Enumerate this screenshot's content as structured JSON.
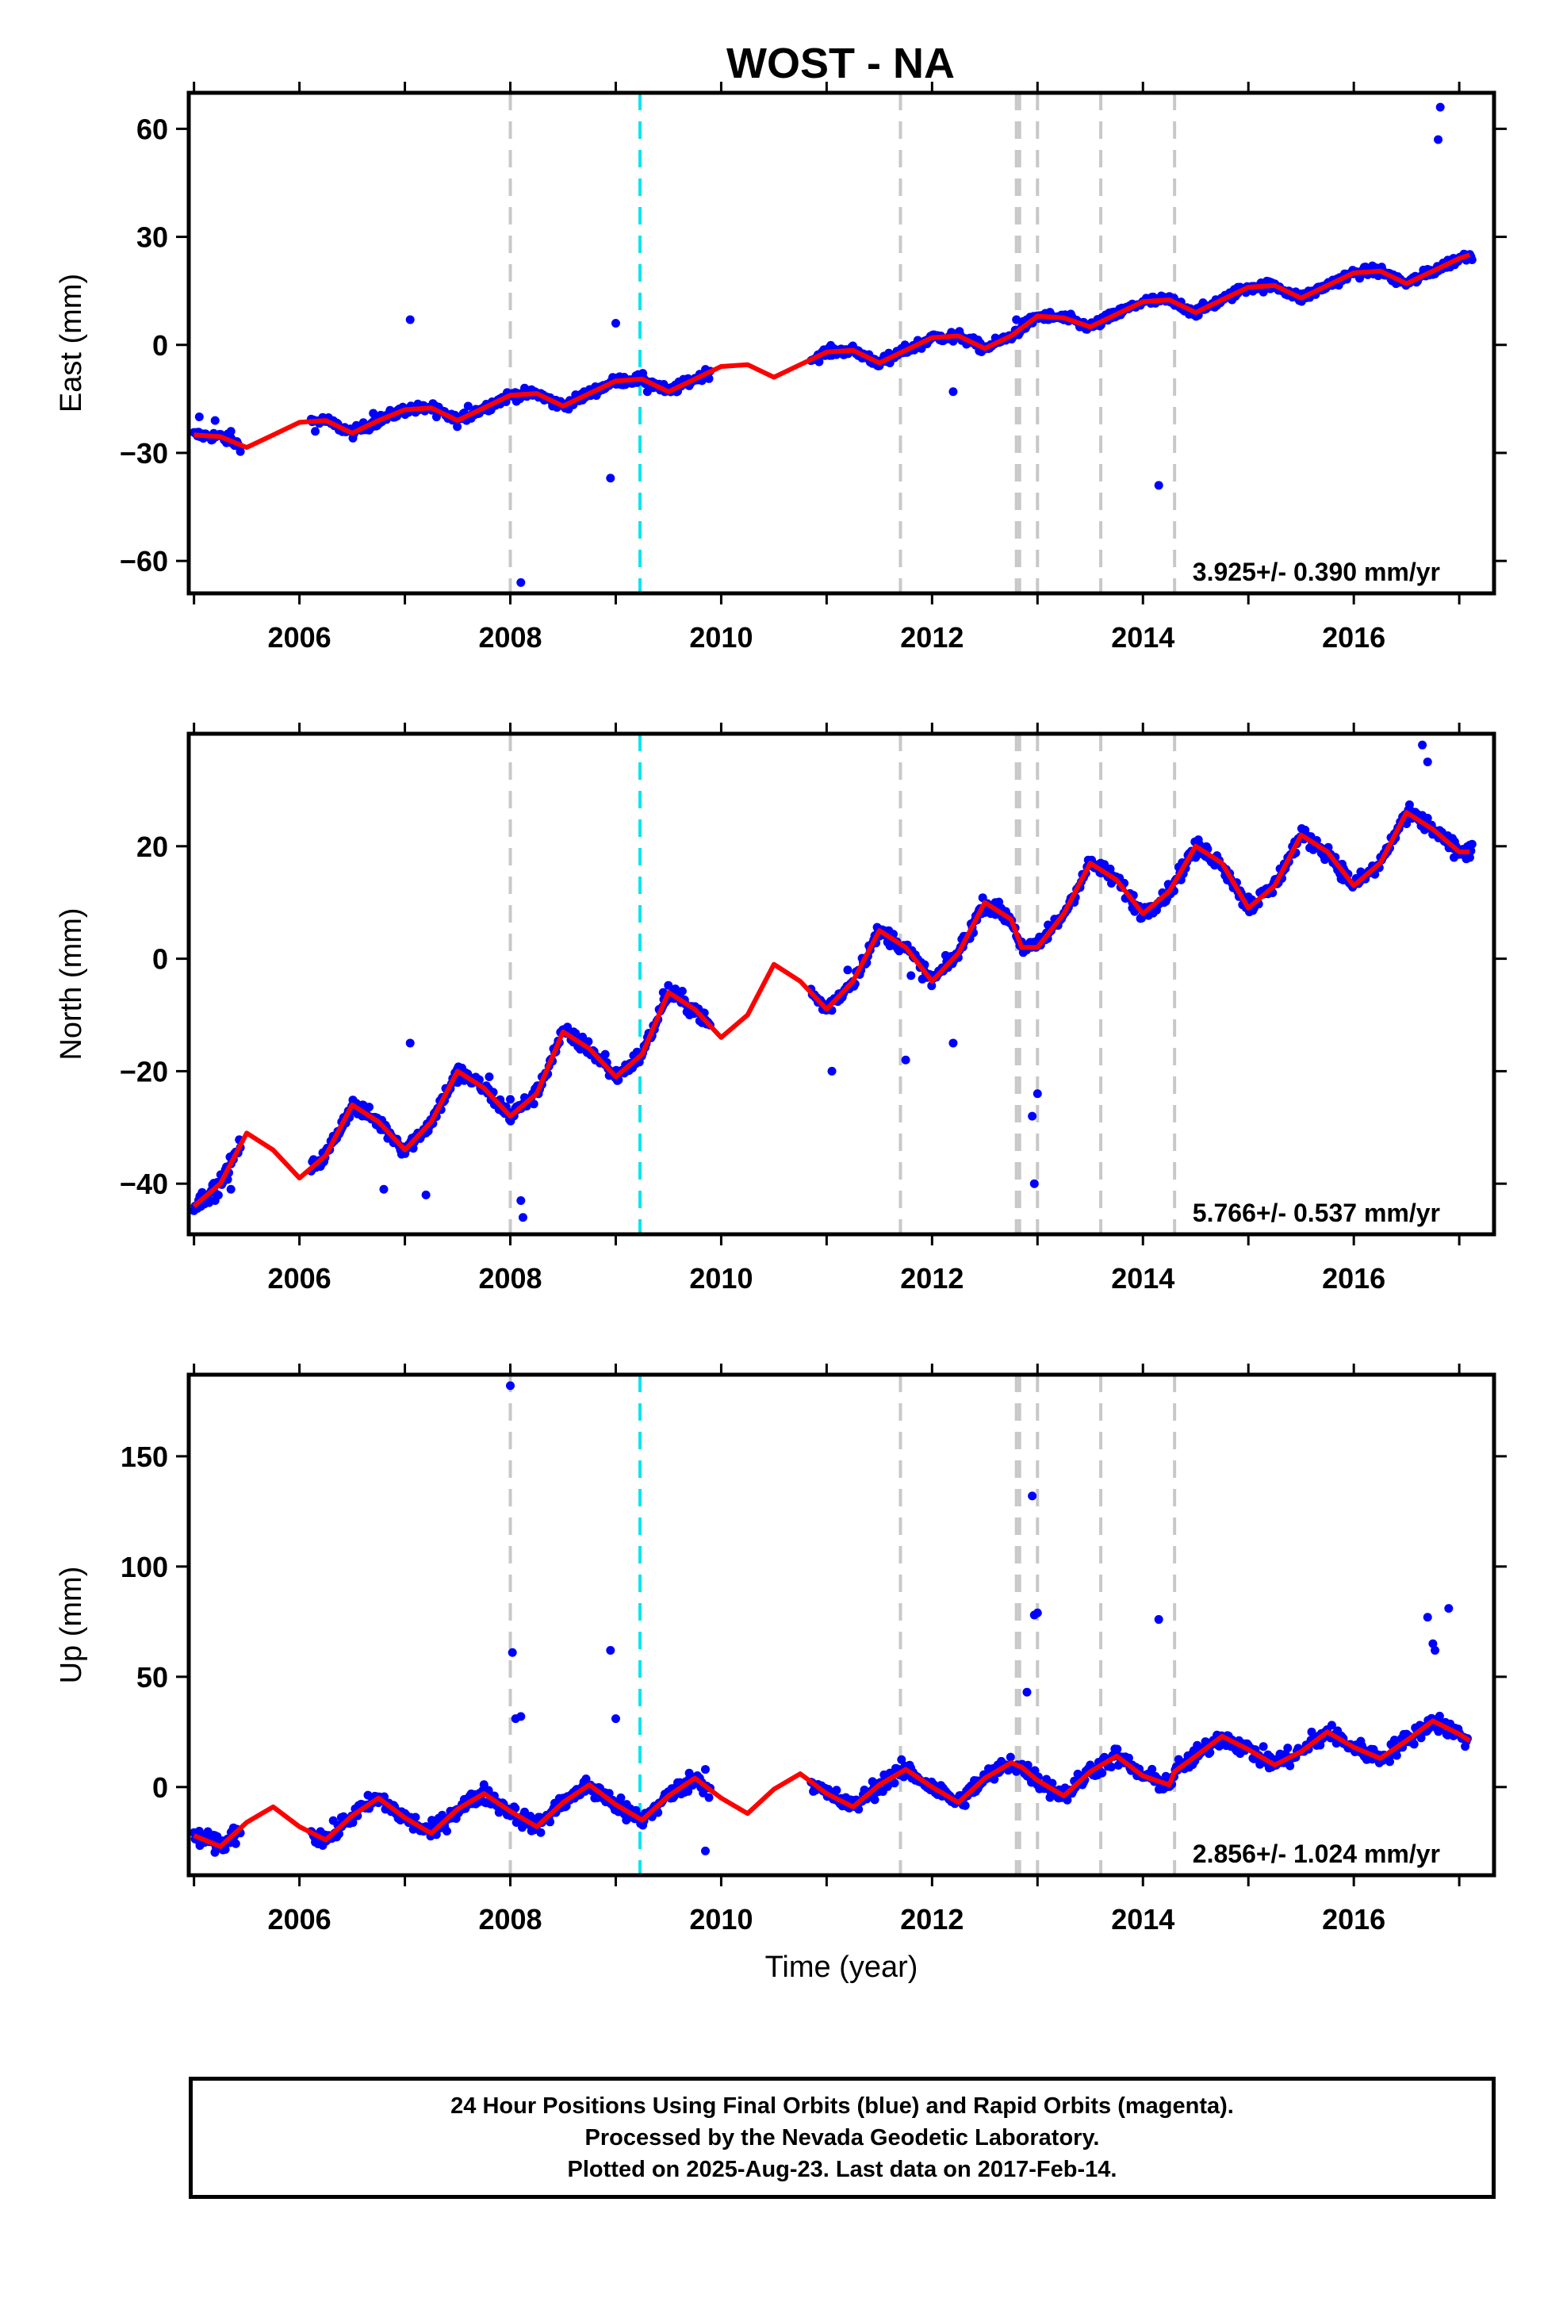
{
  "chart_data": {
    "type": "scatter",
    "title": "WOST - NA",
    "xlabel": "Time (year)",
    "x_tick_labels": [
      "2006",
      "2008",
      "2010",
      "2012",
      "2014",
      "2016"
    ],
    "xlim": [
      2004.95,
      2017.33
    ],
    "colors": {
      "observations": "#0000ff",
      "model": "#ff0000",
      "equipment_change_lines": "#c8c8c8",
      "earthquake_line": "#00e5ee"
    },
    "event_lines": {
      "gray_dashed_years": [
        2008.0,
        2011.7,
        2012.8,
        2012.83,
        2013.0,
        2013.6,
        2014.3
      ],
      "cyan_dashed_years": [
        2009.23
      ]
    },
    "data_gaps_years": [
      [
        2005.45,
        2006.1
      ],
      [
        2009.9,
        2010.85
      ]
    ],
    "panels": [
      {
        "component": "East",
        "ylabel": "East (mm)",
        "ylim": [
          -69,
          70
        ],
        "yticks": [
          -60,
          -30,
          0,
          30,
          60
        ],
        "y_tick_labels": [
          "−60",
          "−30",
          "0",
          "30",
          "60"
        ],
        "rate_label": "3.925+/- 0.390 mm/yr",
        "series": [
          {
            "name": "",
            "style": "points",
            "x": [
              2005.05,
              2005.2,
              2005.35,
              2006.15,
              2006.4,
              2006.7,
              2007.0,
              2007.3,
              2007.6,
              2007.9,
              2008.1,
              2008.4,
              2008.7,
              2009.0,
              2009.3,
              2009.6,
              2009.85,
              2011.0,
              2011.3,
              2011.6,
              2011.9,
              2012.2,
              2012.5,
              2012.8,
              2013.1,
              2013.4,
              2013.7,
              2014.0,
              2014.3,
              2014.6,
              2014.9,
              2015.2,
              2015.5,
              2015.8,
              2016.1,
              2016.4,
              2016.7,
              2016.95,
              2017.1
            ],
            "y": [
              -20,
              -21,
              -24,
              -24,
              -23,
              -19,
              -18,
              -20,
              -17,
              -15,
              -14,
              -17,
              -13,
              -10,
              -13,
              -11,
              -8,
              -2,
              -3,
              -5,
              -1,
              1,
              -1,
              7,
              7,
              5,
              9,
              12,
              11,
              10,
              16,
              17,
              13,
              18,
              20,
              17,
              21,
              24,
              25
            ]
          },
          {
            "name": "",
            "style": "outliers",
            "x": [
              2007.05,
              2008.1,
              2008.95,
              2009.0,
              2012.2,
              2014.15,
              2016.8,
              2016.82
            ],
            "y": [
              7,
              -66,
              -37,
              6,
              -13,
              -39,
              57,
              66
            ]
          },
          {
            "name": "",
            "style": "model",
            "x": [
              2005.0,
              2005.25,
              2005.5,
              2005.75,
              2006.0,
              2006.25,
              2006.5,
              2006.75,
              2007.0,
              2007.25,
              2007.5,
              2007.75,
              2008.0,
              2008.25,
              2008.5,
              2008.75,
              2009.0,
              2009.25,
              2009.5,
              2009.75,
              2010.0,
              2010.25,
              2010.5,
              2010.75,
              2011.0,
              2011.25,
              2011.5,
              2011.75,
              2012.0,
              2012.25,
              2012.5,
              2012.75,
              2013.0,
              2013.25,
              2013.5,
              2013.75,
              2014.0,
              2014.25,
              2014.5,
              2014.75,
              2015.0,
              2015.25,
              2015.5,
              2015.75,
              2016.0,
              2016.25,
              2016.5,
              2016.75,
              2017.0,
              2017.1
            ],
            "y": [
              -25,
              -25.5,
              -28.5,
              -25,
              -21.5,
              -21,
              -24.5,
              -21,
              -18,
              -17.5,
              -21,
              -17.5,
              -14,
              -13.5,
              -17,
              -13.5,
              -10,
              -9.5,
              -13,
              -9.5,
              -6,
              -5.5,
              -9,
              -5.5,
              -2,
              -1.5,
              -5,
              -1.5,
              2,
              2.5,
              -1,
              2.5,
              8,
              7.5,
              5,
              8.5,
              12,
              12.5,
              9,
              12.5,
              16,
              16.5,
              13,
              16.5,
              20,
              20.5,
              17,
              20.5,
              24,
              25
            ]
          }
        ]
      },
      {
        "component": "North",
        "ylabel": "North (mm)",
        "ylim": [
          -49,
          40
        ],
        "yticks": [
          -40,
          -20,
          0,
          20
        ],
        "y_tick_labels": [
          "−40",
          "−20",
          "0",
          "20"
        ],
        "rate_label": "5.766+/- 0.537 mm/yr",
        "series": [
          {
            "name": "",
            "style": "points",
            "x": [
              2005.05,
              2005.2,
              2005.35,
              2006.15,
              2006.4,
              2006.6,
              2006.9,
              2007.2,
              2007.5,
              2007.8,
              2008.0,
              2008.3,
              2008.6,
              2008.9,
              2009.2,
              2009.45,
              2009.7,
              2010.9,
              2011.2,
              2011.5,
              2011.8,
              2012.0,
              2012.3,
              2012.6,
              2012.85,
              2013.1,
              2013.4,
              2013.6,
              2013.9,
              2014.2,
              2014.5,
              2014.8,
              2015.0,
              2015.3,
              2015.6,
              2015.9,
              2016.2,
              2016.5,
              2016.7,
              2016.95,
              2017.1
            ],
            "y": [
              -44,
              -43,
              -41,
              -37,
              -29,
              -26,
              -32,
              -31,
              -22,
              -21,
              -25,
              -21,
              -13,
              -17,
              -18,
              -6,
              -10,
              -7,
              -2,
              4,
              -3,
              -3,
              4,
              10,
              3,
              6,
              13,
              17,
              9,
              10,
              18,
              14,
              11,
              16,
              21,
              14,
              15,
              24,
              25,
              18,
              18
            ]
          },
          {
            "name": "",
            "style": "outliers",
            "x": [
              2006.8,
              2007.05,
              2007.2,
              2008.1,
              2008.12,
              2011.05,
              2011.75,
              2012.2,
              2012.95,
              2012.97,
              2013.0,
              2016.65,
              2016.7
            ],
            "y": [
              -41,
              -15,
              -42,
              -43,
              -46,
              -20,
              -18,
              -15,
              -28,
              -40,
              -24,
              38,
              35
            ]
          },
          {
            "name": "",
            "style": "model",
            "x": [
              2005.0,
              2005.25,
              2005.5,
              2005.75,
              2006.0,
              2006.25,
              2006.5,
              2006.75,
              2007.0,
              2007.25,
              2007.5,
              2007.75,
              2008.0,
              2008.25,
              2008.5,
              2008.75,
              2009.0,
              2009.25,
              2009.5,
              2009.75,
              2010.0,
              2010.25,
              2010.5,
              2010.75,
              2011.0,
              2011.25,
              2011.5,
              2011.75,
              2012.0,
              2012.25,
              2012.5,
              2012.75,
              2012.85,
              2013.0,
              2013.25,
              2013.5,
              2013.75,
              2014.0,
              2014.25,
              2014.5,
              2014.75,
              2015.0,
              2015.25,
              2015.5,
              2015.75,
              2016.0,
              2016.25,
              2016.5,
              2016.75,
              2017.0,
              2017.1
            ],
            "y": [
              -44,
              -40,
              -31,
              -34,
              -39,
              -35,
              -26,
              -29,
              -34,
              -29,
              -20,
              -23,
              -28,
              -24,
              -13,
              -16,
              -21,
              -17,
              -6,
              -9,
              -14,
              -10,
              -1,
              -4,
              -9,
              -4,
              5,
              2,
              -4,
              1,
              10,
              7,
              2,
              2,
              8,
              17,
              14,
              8,
              12,
              20,
              17,
              9,
              13,
              22,
              19,
              13,
              17,
              26,
              23,
              19,
              19
            ]
          }
        ]
      },
      {
        "component": "Up",
        "ylabel": "Up (mm)",
        "ylim": [
          -40,
          187
        ],
        "yticks": [
          0,
          50,
          100,
          150
        ],
        "y_tick_labels": [
          "0",
          "50",
          "100",
          "150"
        ],
        "rate_label": "2.856+/- 1.024 mm/yr",
        "series": [
          {
            "name": "",
            "style": "points",
            "x": [
              2005.05,
              2005.2,
              2005.35,
              2006.15,
              2006.4,
              2006.7,
              2007.0,
              2007.3,
              2007.6,
              2007.9,
              2008.2,
              2008.5,
              2008.8,
              2009.1,
              2009.4,
              2009.7,
              2009.85,
              2010.9,
              2011.2,
              2011.5,
              2011.8,
              2012.1,
              2012.4,
              2012.7,
              2012.9,
              2013.2,
              2013.5,
              2013.8,
              2014.1,
              2014.4,
              2014.7,
              2015.0,
              2015.3,
              2015.6,
              2015.9,
              2016.2,
              2016.5,
              2016.8,
              2017.05
            ],
            "y": [
              -20,
              -22,
              -25,
              -25,
              -18,
              -7,
              -12,
              -20,
              -5,
              -8,
              -18,
              -5,
              -5,
              -15,
              -8,
              4,
              8,
              0,
              -8,
              -2,
              5,
              -2,
              3,
              10,
              5,
              -5,
              10,
              12,
              5,
              10,
              22,
              18,
              15,
              25,
              22,
              15,
              24,
              28,
              22
            ]
          },
          {
            "name": "",
            "style": "outliers",
            "x": [
              2008.0,
              2008.02,
              2008.05,
              2008.1,
              2008.95,
              2009.0,
              2009.85,
              2012.9,
              2012.95,
              2012.97,
              2013.0,
              2014.15,
              2016.7,
              2016.75,
              2016.77,
              2016.9
            ],
            "y": [
              182,
              61,
              31,
              32,
              62,
              31,
              -29,
              43,
              132,
              78,
              79,
              76,
              77,
              65,
              62,
              81
            ]
          },
          {
            "name": "",
            "style": "model",
            "x": [
              2005.0,
              2005.25,
              2005.5,
              2005.75,
              2006.0,
              2006.25,
              2006.5,
              2006.75,
              2007.0,
              2007.25,
              2007.5,
              2007.75,
              2008.0,
              2008.25,
              2008.5,
              2008.75,
              2009.0,
              2009.25,
              2009.5,
              2009.75,
              2010.0,
              2010.25,
              2010.5,
              2010.75,
              2011.0,
              2011.25,
              2011.5,
              2011.75,
              2012.0,
              2012.25,
              2012.5,
              2012.75,
              2012.85,
              2013.0,
              2013.25,
              2013.5,
              2013.75,
              2014.0,
              2014.25,
              2014.3,
              2014.5,
              2014.75,
              2015.0,
              2015.25,
              2015.5,
              2015.75,
              2016.0,
              2016.25,
              2016.5,
              2016.75,
              2017.0,
              2017.1
            ],
            "y": [
              -22,
              -27,
              -16,
              -9,
              -18,
              -24,
              -13,
              -5,
              -14,
              -21,
              -10,
              -3,
              -11,
              -18,
              -7,
              1,
              -8,
              -15,
              -4,
              4,
              -5,
              -12,
              -1,
              6,
              -3,
              -9,
              1,
              8,
              0,
              -7,
              4,
              11,
              9,
              3,
              -4,
              7,
              14,
              5,
              1,
              7,
              14,
              23,
              17,
              10,
              16,
              25,
              18,
              13,
              21,
              30,
              24,
              21
            ]
          }
        ]
      }
    ]
  },
  "footer": {
    "line1": "24 Hour Positions Using Final Orbits (blue) and Rapid Orbits (magenta).",
    "line2": "Processed by the Nevada Geodetic Laboratory.",
    "line3": "Plotted on 2025-Aug-23. Last data on 2017-Feb-14."
  }
}
